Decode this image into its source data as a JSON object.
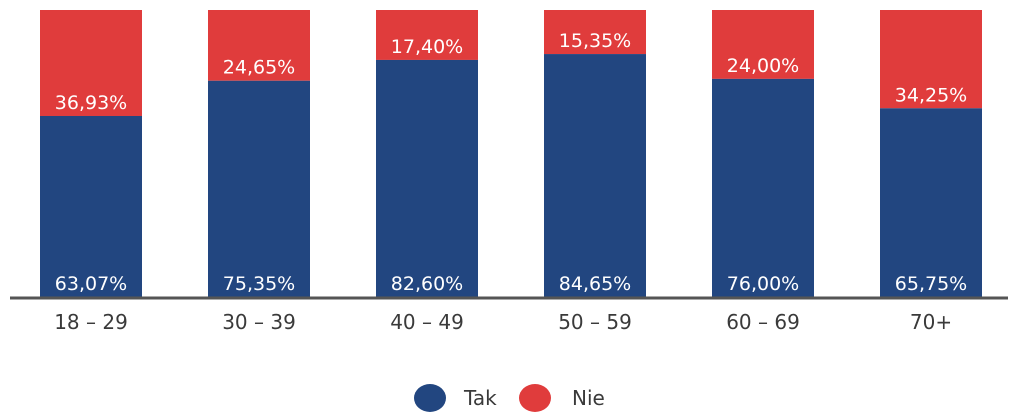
{
  "chart_data": {
    "type": "bar",
    "stacked": true,
    "percent_stacked": true,
    "categories": [
      "18 – 29",
      "30 – 39",
      "40 – 49",
      "50 – 59",
      "60 – 69",
      "70+"
    ],
    "series": [
      {
        "name": "Tak",
        "color": "#224680",
        "values": [
          63.07,
          75.35,
          82.6,
          84.65,
          76.0,
          65.75
        ],
        "labels": [
          "63,07%",
          "75,35%",
          "82,60%",
          "84,65%",
          "76,00%",
          "65,75%"
        ]
      },
      {
        "name": "Nie",
        "color": "#e03c3c",
        "values": [
          36.93,
          24.65,
          17.4,
          15.35,
          24.0,
          34.25
        ],
        "labels": [
          "36,93%",
          "24,65%",
          "17,40%",
          "15,35%",
          "24,00%",
          "34,25%"
        ]
      }
    ],
    "ylim": [
      0,
      100
    ],
    "grid": false,
    "legend_position": "bottom-center",
    "axis_color": "#555555"
  }
}
